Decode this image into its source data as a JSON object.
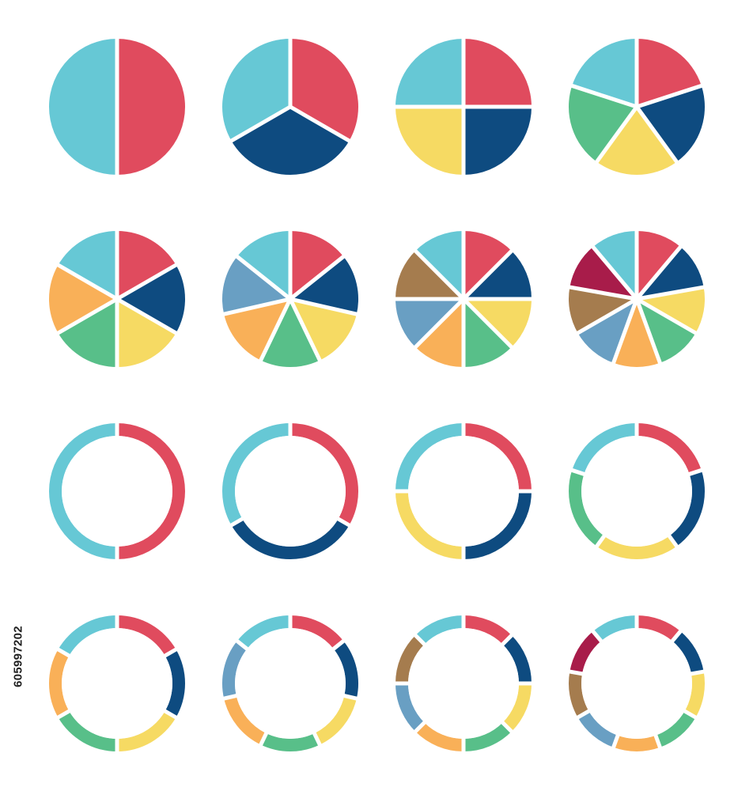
{
  "colors": {
    "cyan": "#66c8d5",
    "red": "#e04b5e",
    "navy": "#0e4b80",
    "yellow": "#f6da63",
    "green": "#58bf89",
    "orange": "#f9b058",
    "steel": "#699fc3",
    "brown": "#a57c4e",
    "crimson": "#a81c4a",
    "gap": "#ffffff",
    "background": "#ffffff"
  },
  "watermark": {
    "stock_id": "605997202"
  },
  "chart_data": [
    {
      "type": "pie",
      "style": "solid",
      "segment_count": 2,
      "values": [
        1,
        1
      ],
      "colors": [
        "red",
        "cyan"
      ]
    },
    {
      "type": "pie",
      "style": "solid",
      "segment_count": 3,
      "values": [
        1,
        1,
        1
      ],
      "colors": [
        "red",
        "navy",
        "cyan"
      ]
    },
    {
      "type": "pie",
      "style": "solid",
      "segment_count": 4,
      "values": [
        1,
        1,
        1,
        1
      ],
      "colors": [
        "red",
        "navy",
        "yellow",
        "cyan"
      ]
    },
    {
      "type": "pie",
      "style": "solid",
      "segment_count": 5,
      "values": [
        1,
        1,
        1,
        1,
        1
      ],
      "colors": [
        "red",
        "navy",
        "yellow",
        "green",
        "cyan"
      ]
    },
    {
      "type": "pie",
      "style": "solid",
      "segment_count": 6,
      "values": [
        1,
        1,
        1,
        1,
        1,
        1
      ],
      "colors": [
        "red",
        "navy",
        "yellow",
        "green",
        "orange",
        "cyan"
      ]
    },
    {
      "type": "pie",
      "style": "solid",
      "segment_count": 7,
      "values": [
        1,
        1,
        1,
        1,
        1,
        1,
        1
      ],
      "colors": [
        "red",
        "navy",
        "yellow",
        "green",
        "orange",
        "steel",
        "cyan"
      ]
    },
    {
      "type": "pie",
      "style": "solid",
      "segment_count": 8,
      "values": [
        1,
        1,
        1,
        1,
        1,
        1,
        1,
        1
      ],
      "colors": [
        "red",
        "navy",
        "yellow",
        "green",
        "orange",
        "steel",
        "brown",
        "cyan"
      ]
    },
    {
      "type": "pie",
      "style": "solid",
      "segment_count": 9,
      "values": [
        1,
        1,
        1,
        1,
        1,
        1,
        1,
        1,
        1
      ],
      "colors": [
        "red",
        "navy",
        "yellow",
        "green",
        "orange",
        "steel",
        "brown",
        "crimson",
        "cyan"
      ]
    },
    {
      "type": "pie",
      "style": "donut",
      "segment_count": 2,
      "values": [
        1,
        1
      ],
      "colors": [
        "red",
        "cyan"
      ]
    },
    {
      "type": "pie",
      "style": "donut",
      "segment_count": 3,
      "values": [
        1,
        1,
        1
      ],
      "colors": [
        "red",
        "navy",
        "cyan"
      ]
    },
    {
      "type": "pie",
      "style": "donut",
      "segment_count": 4,
      "values": [
        1,
        1,
        1,
        1
      ],
      "colors": [
        "red",
        "navy",
        "yellow",
        "cyan"
      ]
    },
    {
      "type": "pie",
      "style": "donut",
      "segment_count": 5,
      "values": [
        1,
        1,
        1,
        1,
        1
      ],
      "colors": [
        "red",
        "navy",
        "yellow",
        "green",
        "cyan"
      ]
    },
    {
      "type": "pie",
      "style": "donut",
      "segment_count": 6,
      "values": [
        1,
        1,
        1,
        1,
        1,
        1
      ],
      "colors": [
        "red",
        "navy",
        "yellow",
        "green",
        "orange",
        "cyan"
      ]
    },
    {
      "type": "pie",
      "style": "donut",
      "segment_count": 7,
      "values": [
        1,
        1,
        1,
        1,
        1,
        1,
        1
      ],
      "colors": [
        "red",
        "navy",
        "yellow",
        "green",
        "orange",
        "steel",
        "cyan"
      ]
    },
    {
      "type": "pie",
      "style": "donut",
      "segment_count": 8,
      "values": [
        1,
        1,
        1,
        1,
        1,
        1,
        1,
        1
      ],
      "colors": [
        "red",
        "navy",
        "yellow",
        "green",
        "orange",
        "steel",
        "brown",
        "cyan"
      ]
    },
    {
      "type": "pie",
      "style": "donut",
      "segment_count": 9,
      "values": [
        1,
        1,
        1,
        1,
        1,
        1,
        1,
        1,
        1
      ],
      "colors": [
        "red",
        "navy",
        "yellow",
        "green",
        "orange",
        "steel",
        "brown",
        "crimson",
        "cyan"
      ]
    }
  ]
}
